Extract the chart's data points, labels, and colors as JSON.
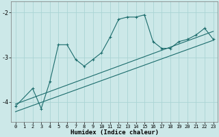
{
  "xlabel": "Humidex (Indice chaleur)",
  "background_color": "#cce8e8",
  "grid_color": "#aad4d4",
  "line_color": "#1a6b6b",
  "xlim": [
    -0.5,
    23.5
  ],
  "ylim": [
    -4.45,
    -1.75
  ],
  "yticks": [
    -4,
    -3,
    -2
  ],
  "xticks": [
    0,
    1,
    2,
    3,
    4,
    5,
    6,
    7,
    8,
    9,
    10,
    11,
    12,
    13,
    14,
    15,
    16,
    17,
    18,
    19,
    20,
    21,
    22,
    23
  ],
  "curve_x": [
    0,
    2,
    3,
    4,
    5,
    6,
    7,
    8,
    9,
    10,
    11,
    12,
    13,
    14,
    15,
    16,
    17,
    18,
    19,
    20,
    21,
    22,
    23
  ],
  "curve_y": [
    -4.1,
    -3.7,
    -4.15,
    -3.55,
    -2.72,
    -2.72,
    -3.05,
    -3.2,
    -3.05,
    -2.9,
    -2.55,
    -2.15,
    -2.1,
    -2.1,
    -2.05,
    -2.65,
    -2.8,
    -2.8,
    -2.65,
    -2.6,
    -2.5,
    -2.35,
    -2.6
  ],
  "line1_x": [
    0,
    23
  ],
  "line1_y": [
    -4.05,
    -2.42
  ],
  "line2_x": [
    0,
    23
  ],
  "line2_y": [
    -4.22,
    -2.62
  ]
}
